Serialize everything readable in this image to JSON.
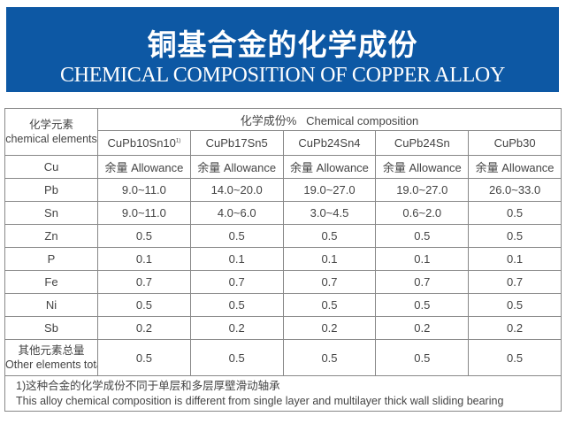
{
  "banner": {
    "title_cn": "铜基合金的化学成份",
    "title_en": "CHEMICAL COMPOSITION OF COPPER ALLOY",
    "color": "#0d58a4"
  },
  "table": {
    "element_header_cn": "化学元素",
    "element_header_en": "chemical elements",
    "composition_header": "化学成份%   Chemical composition",
    "alloys": [
      "CuPb10Sn10",
      "CuPb17Sn5",
      "CuPb24Sn4",
      "CuPb24Sn",
      "CuPb30"
    ],
    "alloy_footnote_mark": "1)",
    "rows": [
      {
        "element": "Cu",
        "values": [
          "余量 Allowance",
          "余量 Allowance",
          "余量 Allowance",
          "余量 Allowance",
          "余量 Allowance"
        ]
      },
      {
        "element": "Pb",
        "values": [
          "9.0~11.0",
          "14.0~20.0",
          "19.0~27.0",
          "19.0~27.0",
          "26.0~33.0"
        ]
      },
      {
        "element": "Sn",
        "values": [
          "9.0~11.0",
          "4.0~6.0",
          "3.0~4.5",
          "0.6~2.0",
          "0.5"
        ]
      },
      {
        "element": "Zn",
        "values": [
          "0.5",
          "0.5",
          "0.5",
          "0.5",
          "0.5"
        ]
      },
      {
        "element": "P",
        "values": [
          "0.1",
          "0.1",
          "0.1",
          "0.1",
          "0.1"
        ]
      },
      {
        "element": "Fe",
        "values": [
          "0.7",
          "0.7",
          "0.7",
          "0.7",
          "0.7"
        ]
      },
      {
        "element": "Ni",
        "values": [
          "0.5",
          "0.5",
          "0.5",
          "0.5",
          "0.5"
        ]
      },
      {
        "element": "Sb",
        "values": [
          "0.2",
          "0.2",
          "0.2",
          "0.2",
          "0.2"
        ]
      }
    ],
    "other": {
      "label_cn": "其他元素总量",
      "label_en": "Other elements total",
      "values": [
        "0.5",
        "0.5",
        "0.5",
        "0.5",
        "0.5"
      ]
    },
    "note_cn": "1)这种合金的化学成份不同于单层和多层厚壁滑动轴承",
    "note_en": "This alloy chemical composition is different from single layer and multilayer thick wall sliding bearing"
  }
}
